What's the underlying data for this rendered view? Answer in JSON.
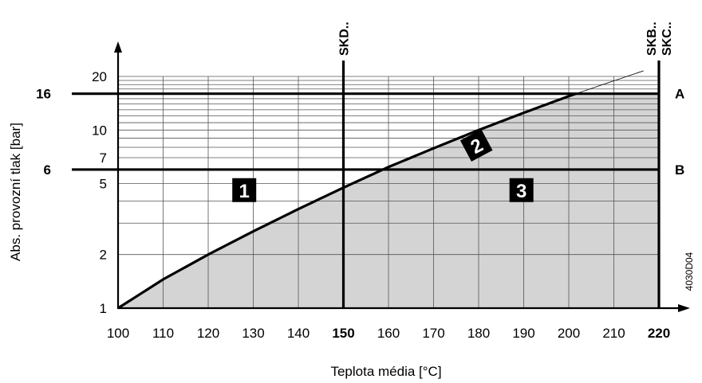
{
  "chart_data": {
    "type": "area",
    "x_axis": {
      "label": "Teplota média [°C]",
      "range": [
        100,
        220
      ],
      "ticks": [
        100,
        110,
        120,
        130,
        140,
        150,
        160,
        170,
        180,
        190,
        200,
        210,
        220
      ],
      "bold_ticks": [
        150,
        220
      ]
    },
    "y_axis": {
      "label": "Abs. provozní tlak [bar]",
      "scale": "log",
      "range": [
        1,
        20
      ],
      "ticks": [
        1,
        2,
        5,
        7,
        10,
        20
      ],
      "bold_ticks": [
        6,
        16
      ]
    },
    "grid": true,
    "curve": {
      "x": [
        100,
        110,
        120,
        130,
        140,
        150,
        160,
        170,
        180,
        190,
        200,
        210,
        220
      ],
      "y": [
        1.0,
        1.45,
        2.0,
        2.7,
        3.6,
        4.75,
        6.2,
        7.9,
        10.0,
        12.5,
        15.5,
        18.9,
        23.0
      ],
      "fill": "#d4d4d4"
    },
    "vertical_lines": [
      {
        "x": 150,
        "label": "SKD.."
      },
      {
        "x": 220,
        "label": "SKB..\nSKC.."
      }
    ],
    "horizontal_lines": [
      {
        "y": 16,
        "label": "A"
      },
      {
        "y": 6,
        "label": "B"
      }
    ],
    "region_labels": [
      {
        "text": "1",
        "x": 128,
        "y": 4.6
      },
      {
        "text": "2",
        "x": 179.5,
        "y": 8.2
      },
      {
        "text": "3",
        "x": 189.5,
        "y": 4.6
      }
    ],
    "code": "4030D04"
  }
}
